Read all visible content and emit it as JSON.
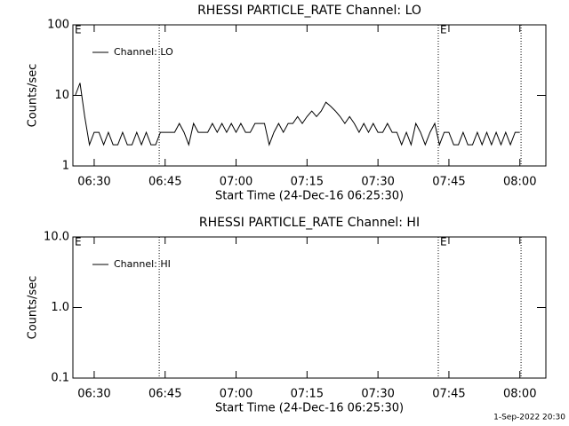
{
  "chart_data": [
    {
      "type": "line",
      "title": "RHESSI PARTICLE_RATE Channel: LO",
      "xlabel": "Start Time (24-Dec-16 06:25:30)",
      "ylabel": "Counts/sec",
      "log_y": true,
      "legend": "upper left",
      "xlim": [
        "06:25:30",
        "08:05:30"
      ],
      "xticks": [
        "06:30",
        "06:45",
        "07:00",
        "07:15",
        "07:30",
        "07:45",
        "08:00"
      ],
      "ylim": [
        1,
        100
      ],
      "yticks": [
        1,
        10,
        100
      ],
      "vlines": [
        "06:43:45",
        "07:42:45",
        "08:00:15"
      ],
      "annotations": [
        {
          "x": "06:25:30",
          "text": "E"
        },
        {
          "x": "07:42:45",
          "text": "E"
        }
      ],
      "x": [
        "06:26",
        "06:27",
        "06:28",
        "06:29",
        "06:30",
        "06:31",
        "06:32",
        "06:33",
        "06:34",
        "06:35",
        "06:36",
        "06:37",
        "06:38",
        "06:39",
        "06:40",
        "06:41",
        "06:42",
        "06:43",
        "06:44",
        "06:45",
        "06:46",
        "06:47",
        "06:48",
        "06:49",
        "06:50",
        "06:51",
        "06:52",
        "06:53",
        "06:54",
        "06:55",
        "06:56",
        "06:57",
        "06:58",
        "06:59",
        "07:00",
        "07:01",
        "07:02",
        "07:03",
        "07:04",
        "07:05",
        "07:06",
        "07:07",
        "07:08",
        "07:09",
        "07:10",
        "07:11",
        "07:12",
        "07:13",
        "07:14",
        "07:15",
        "07:16",
        "07:17",
        "07:18",
        "07:19",
        "07:20",
        "07:21",
        "07:22",
        "07:23",
        "07:24",
        "07:25",
        "07:26",
        "07:27",
        "07:28",
        "07:29",
        "07:30",
        "07:31",
        "07:32",
        "07:33",
        "07:34",
        "07:35",
        "07:36",
        "07:37",
        "07:38",
        "07:39",
        "07:40",
        "07:41",
        "07:42",
        "07:43",
        "07:44",
        "07:45",
        "07:46",
        "07:47",
        "07:48",
        "07:49",
        "07:50",
        "07:51",
        "07:52",
        "07:53",
        "07:54",
        "07:55",
        "07:56",
        "07:57",
        "07:58",
        "07:59",
        "08:00"
      ],
      "series": [
        {
          "name": "Channel: LO",
          "color": "#000000",
          "values": [
            10,
            15,
            5,
            2,
            3,
            3,
            2,
            3,
            2,
            2,
            3,
            2,
            2,
            3,
            2,
            3,
            2,
            2,
            3,
            3,
            3,
            3,
            4,
            3,
            2,
            4,
            3,
            3,
            3,
            4,
            3,
            4,
            3,
            4,
            3,
            4,
            3,
            3,
            4,
            4,
            4,
            2,
            3,
            4,
            3,
            4,
            4,
            5,
            4,
            5,
            6,
            5,
            6,
            8,
            7,
            6,
            5,
            4,
            5,
            4,
            3,
            4,
            3,
            4,
            3,
            3,
            4,
            3,
            3,
            2,
            3,
            2,
            4,
            3,
            2,
            3,
            4,
            2,
            3,
            3,
            2,
            2,
            3,
            2,
            2,
            3,
            2,
            3,
            2,
            3,
            2,
            3,
            2,
            3,
            3
          ]
        }
      ]
    },
    {
      "type": "line",
      "title": "RHESSI PARTICLE_RATE Channel: HI",
      "xlabel": "Start Time (24-Dec-16 06:25:30)",
      "ylabel": "Counts/sec",
      "log_y": true,
      "legend": "upper left",
      "xlim": [
        "06:25:30",
        "08:05:30"
      ],
      "xticks": [
        "06:30",
        "06:45",
        "07:00",
        "07:15",
        "07:30",
        "07:45",
        "08:00"
      ],
      "ylim": [
        0.1,
        10
      ],
      "yticks": [
        0.1,
        {
          "value": 1,
          "label": "1.0"
        },
        {
          "value": 10,
          "label": "10.0"
        }
      ],
      "vlines": [
        "06:43:45",
        "07:42:45",
        "08:00:15"
      ],
      "annotations": [
        {
          "x": "06:25:30",
          "text": "E"
        },
        {
          "x": "07:42:45",
          "text": "E"
        }
      ],
      "x": [],
      "series": [
        {
          "name": "Channel: HI",
          "color": "#000000",
          "values": []
        }
      ]
    }
  ],
  "footer": "1-Sep-2022 20:30"
}
